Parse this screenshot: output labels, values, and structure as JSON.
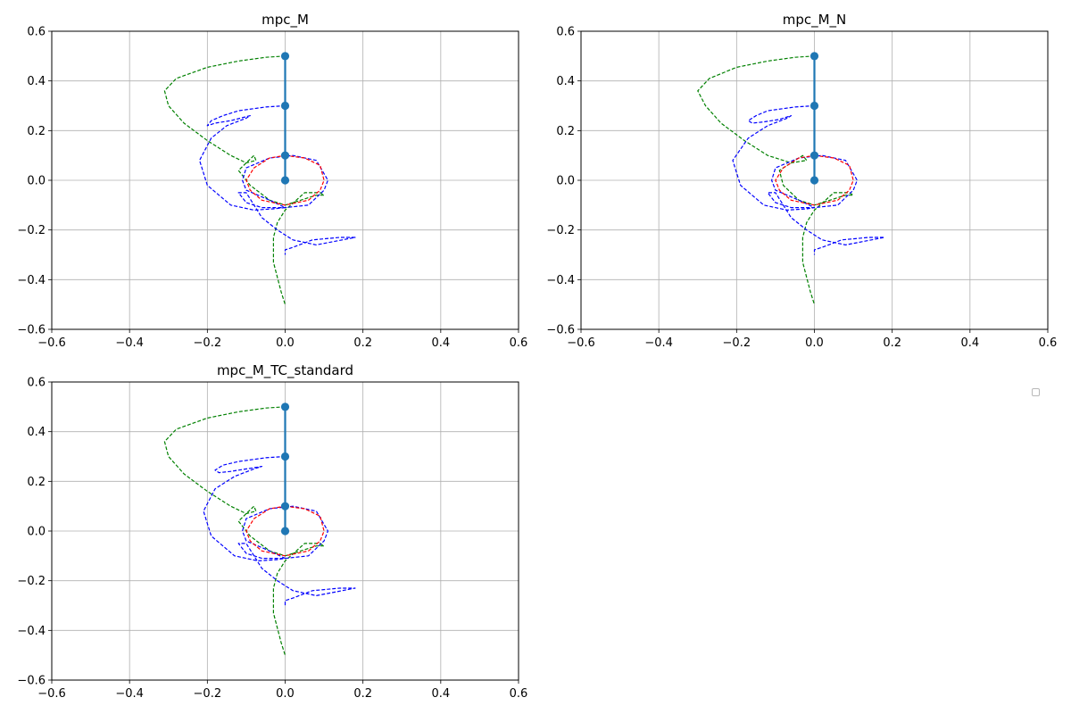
{
  "chart_data": [
    {
      "type": "line",
      "title": "mpc_M",
      "xlim": [
        -0.6,
        0.6
      ],
      "ylim": [
        -0.6,
        0.6
      ],
      "xticks": [
        "−0.6",
        "−0.4",
        "−0.2",
        "0.0",
        "0.2",
        "0.4",
        "0.6"
      ],
      "yticks": [
        "−0.6",
        "−0.4",
        "−0.2",
        "0.0",
        "0.2",
        "0.4",
        "0.6"
      ],
      "grid": true,
      "pendulum": {
        "x": [
          0.0,
          0.0,
          0.0,
          0.0
        ],
        "y": [
          0.0,
          0.1,
          0.3,
          0.5
        ]
      },
      "series": [
        {
          "color": "#008000",
          "style": "dashed",
          "x": [
            0.0,
            -0.05,
            -0.12,
            -0.2,
            -0.28,
            -0.31,
            -0.3,
            -0.26,
            -0.2,
            -0.14,
            -0.1,
            -0.075,
            -0.08,
            -0.1,
            -0.12,
            -0.09,
            -0.04,
            0.0,
            0.04,
            0.08,
            0.1,
            0.09,
            0.05,
            0.0,
            -0.02,
            -0.03,
            -0.03,
            -0.01,
            0.0
          ],
          "y": [
            0.5,
            0.495,
            0.48,
            0.455,
            0.41,
            0.36,
            0.3,
            0.23,
            0.16,
            0.1,
            0.07,
            0.08,
            0.1,
            0.07,
            0.04,
            -0.02,
            -0.08,
            -0.1,
            -0.08,
            -0.06,
            -0.06,
            -0.05,
            -0.05,
            -0.12,
            -0.17,
            -0.23,
            -0.33,
            -0.45,
            -0.5
          ]
        },
        {
          "color": "#0000ff",
          "style": "dashed",
          "x": [
            0.0,
            -0.05,
            -0.12,
            -0.16,
            -0.19,
            -0.2,
            -0.18,
            -0.14,
            -0.09,
            -0.1,
            -0.15,
            -0.19,
            -0.22,
            -0.2,
            -0.14,
            -0.08,
            -0.03,
            0.0,
            -0.04,
            -0.1,
            -0.11,
            -0.1,
            -0.04,
            0.02,
            0.08,
            0.11,
            0.1,
            0.06,
            0.0,
            -0.06,
            -0.1,
            -0.12,
            -0.1,
            -0.06,
            -0.02,
            0.02,
            0.08,
            0.18,
            0.14,
            0.07,
            0.02,
            0.0,
            0.0
          ],
          "y": [
            0.3,
            0.295,
            0.28,
            0.26,
            0.24,
            0.22,
            0.23,
            0.24,
            0.26,
            0.25,
            0.22,
            0.17,
            0.08,
            -0.02,
            -0.1,
            -0.12,
            -0.115,
            -0.11,
            -0.08,
            -0.04,
            0.0,
            0.05,
            0.09,
            0.1,
            0.08,
            0.0,
            -0.04,
            -0.1,
            -0.11,
            -0.11,
            -0.09,
            -0.05,
            -0.05,
            -0.15,
            -0.2,
            -0.24,
            -0.26,
            -0.23,
            -0.23,
            -0.24,
            -0.27,
            -0.28,
            -0.3
          ]
        },
        {
          "color": "#ff0000",
          "style": "dashed",
          "x": [
            0.0,
            0.05,
            0.09,
            0.1,
            0.09,
            0.06,
            0.0,
            -0.06,
            -0.09,
            -0.1,
            -0.08,
            -0.04,
            0.0
          ],
          "y": [
            0.1,
            0.09,
            0.06,
            0.0,
            -0.04,
            -0.08,
            -0.1,
            -0.08,
            -0.04,
            0.0,
            0.05,
            0.09,
            0.1
          ]
        }
      ]
    },
    {
      "type": "line",
      "title": "mpc_M_N",
      "xlim": [
        -0.6,
        0.6
      ],
      "ylim": [
        -0.6,
        0.6
      ],
      "xticks": [
        "−0.6",
        "−0.4",
        "−0.2",
        "0.0",
        "0.2",
        "0.4",
        "0.6"
      ],
      "yticks": [
        "−0.6",
        "−0.4",
        "−0.2",
        "0.0",
        "0.2",
        "0.4",
        "0.6"
      ],
      "grid": true,
      "pendulum": {
        "x": [
          0.0,
          0.0,
          0.0,
          0.0
        ],
        "y": [
          0.0,
          0.1,
          0.3,
          0.5
        ]
      },
      "series": [
        {
          "color": "#008000",
          "style": "dashed",
          "x": [
            0.0,
            -0.05,
            -0.12,
            -0.2,
            -0.27,
            -0.3,
            -0.28,
            -0.24,
            -0.18,
            -0.12,
            -0.06,
            -0.02,
            -0.03,
            -0.06,
            -0.09,
            -0.08,
            -0.04,
            0.0,
            0.04,
            0.08,
            0.1,
            0.09,
            0.05,
            0.0,
            -0.02,
            -0.03,
            -0.03,
            -0.01,
            0.0
          ],
          "y": [
            0.5,
            0.495,
            0.48,
            0.455,
            0.41,
            0.36,
            0.3,
            0.23,
            0.16,
            0.1,
            0.07,
            0.08,
            0.1,
            0.07,
            0.04,
            -0.02,
            -0.08,
            -0.1,
            -0.08,
            -0.06,
            -0.06,
            -0.05,
            -0.05,
            -0.12,
            -0.17,
            -0.23,
            -0.33,
            -0.45,
            -0.5
          ]
        },
        {
          "color": "#0000ff",
          "style": "dashed",
          "x": [
            0.0,
            -0.05,
            -0.12,
            -0.15,
            -0.17,
            -0.16,
            -0.13,
            -0.09,
            -0.06,
            -0.07,
            -0.12,
            -0.17,
            -0.21,
            -0.19,
            -0.13,
            -0.07,
            -0.02,
            0.0,
            -0.04,
            -0.1,
            -0.11,
            -0.1,
            -0.04,
            0.02,
            0.08,
            0.11,
            0.1,
            0.06,
            0.0,
            -0.06,
            -0.1,
            -0.12,
            -0.1,
            -0.06,
            -0.02,
            0.02,
            0.08,
            0.18,
            0.14,
            0.07,
            0.02,
            0.0,
            0.0
          ],
          "y": [
            0.3,
            0.295,
            0.28,
            0.26,
            0.24,
            0.23,
            0.235,
            0.245,
            0.26,
            0.25,
            0.22,
            0.17,
            0.08,
            -0.02,
            -0.1,
            -0.12,
            -0.115,
            -0.11,
            -0.08,
            -0.04,
            0.0,
            0.05,
            0.09,
            0.1,
            0.08,
            0.0,
            -0.04,
            -0.1,
            -0.11,
            -0.11,
            -0.09,
            -0.05,
            -0.05,
            -0.15,
            -0.2,
            -0.24,
            -0.26,
            -0.23,
            -0.23,
            -0.24,
            -0.27,
            -0.28,
            -0.3
          ]
        },
        {
          "color": "#ff0000",
          "style": "dashed",
          "x": [
            0.0,
            0.05,
            0.09,
            0.1,
            0.09,
            0.06,
            0.0,
            -0.06,
            -0.09,
            -0.1,
            -0.08,
            -0.04,
            0.0
          ],
          "y": [
            0.1,
            0.09,
            0.06,
            0.0,
            -0.04,
            -0.08,
            -0.1,
            -0.08,
            -0.04,
            0.0,
            0.05,
            0.09,
            0.1
          ]
        }
      ]
    },
    {
      "type": "line",
      "title": "mpc_M_TC_standard",
      "xlim": [
        -0.6,
        0.6
      ],
      "ylim": [
        -0.6,
        0.6
      ],
      "xticks": [
        "−0.6",
        "−0.4",
        "−0.2",
        "0.0",
        "0.2",
        "0.4",
        "0.6"
      ],
      "yticks": [
        "−0.6",
        "−0.4",
        "−0.2",
        "0.0",
        "0.2",
        "0.4",
        "0.6"
      ],
      "grid": true,
      "pendulum": {
        "x": [
          0.0,
          0.0,
          0.0,
          0.0
        ],
        "y": [
          0.0,
          0.1,
          0.3,
          0.5
        ]
      },
      "series": [
        {
          "color": "#008000",
          "style": "dashed",
          "x": [
            0.0,
            -0.05,
            -0.12,
            -0.2,
            -0.28,
            -0.31,
            -0.3,
            -0.26,
            -0.2,
            -0.14,
            -0.1,
            -0.075,
            -0.08,
            -0.1,
            -0.12,
            -0.09,
            -0.04,
            0.0,
            0.04,
            0.08,
            0.1,
            0.09,
            0.05,
            0.0,
            -0.02,
            -0.03,
            -0.03,
            -0.01,
            0.0
          ],
          "y": [
            0.5,
            0.495,
            0.48,
            0.455,
            0.41,
            0.36,
            0.3,
            0.23,
            0.16,
            0.1,
            0.07,
            0.08,
            0.1,
            0.07,
            0.04,
            -0.02,
            -0.08,
            -0.1,
            -0.08,
            -0.06,
            -0.06,
            -0.05,
            -0.05,
            -0.12,
            -0.17,
            -0.23,
            -0.33,
            -0.45,
            -0.5
          ]
        },
        {
          "color": "#0000ff",
          "style": "dashed",
          "x": [
            0.0,
            -0.05,
            -0.12,
            -0.16,
            -0.18,
            -0.17,
            -0.14,
            -0.1,
            -0.06,
            -0.08,
            -0.13,
            -0.18,
            -0.21,
            -0.19,
            -0.13,
            -0.07,
            -0.02,
            0.0,
            -0.04,
            -0.1,
            -0.11,
            -0.1,
            -0.04,
            0.02,
            0.08,
            0.11,
            0.1,
            0.06,
            0.0,
            -0.06,
            -0.1,
            -0.12,
            -0.1,
            -0.06,
            -0.02,
            0.02,
            0.08,
            0.18,
            0.14,
            0.07,
            0.02,
            0.0,
            0.0
          ],
          "y": [
            0.3,
            0.295,
            0.28,
            0.265,
            0.245,
            0.235,
            0.24,
            0.25,
            0.26,
            0.25,
            0.22,
            0.17,
            0.08,
            -0.02,
            -0.1,
            -0.12,
            -0.115,
            -0.11,
            -0.08,
            -0.04,
            0.0,
            0.05,
            0.09,
            0.1,
            0.08,
            0.0,
            -0.04,
            -0.1,
            -0.11,
            -0.11,
            -0.09,
            -0.05,
            -0.05,
            -0.15,
            -0.2,
            -0.24,
            -0.26,
            -0.23,
            -0.23,
            -0.24,
            -0.27,
            -0.28,
            -0.3
          ]
        },
        {
          "color": "#ff0000",
          "style": "dashed",
          "x": [
            0.0,
            0.05,
            0.09,
            0.1,
            0.09,
            0.06,
            0.0,
            -0.06,
            -0.09,
            -0.1,
            -0.08,
            -0.04,
            0.0
          ],
          "y": [
            0.1,
            0.09,
            0.06,
            0.0,
            -0.04,
            -0.08,
            -0.1,
            -0.08,
            -0.04,
            0.0,
            0.05,
            0.09,
            0.1
          ]
        }
      ]
    }
  ],
  "colors": {
    "pendulum": "#1f77b4",
    "grid": "#b0b0b0",
    "axes": "#000000"
  },
  "legend": {
    "entries": []
  }
}
